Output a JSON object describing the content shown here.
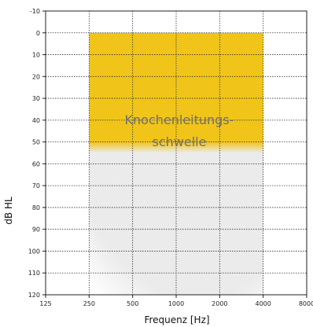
{
  "chart_data": {
    "type": "heatmap",
    "xlabel": "Frequenz [Hz]",
    "ylabel": "dB HL",
    "x_scale": "log2",
    "x_ticks": [
      125,
      250,
      500,
      1000,
      2000,
      4000,
      8000
    ],
    "x_tick_labels": [
      "125",
      "250",
      "500",
      "1000",
      "2000",
      "4000",
      "8000"
    ],
    "ylim": [
      -10,
      120
    ],
    "y_inverted": true,
    "y_ticks": [
      -10,
      0,
      10,
      20,
      30,
      40,
      50,
      60,
      70,
      80,
      90,
      100,
      110,
      120
    ],
    "y_tick_labels": [
      "-10",
      "0",
      "10",
      "20",
      "30",
      "40",
      "50",
      "60",
      "70",
      "80",
      "90",
      "100",
      "110",
      "120"
    ],
    "grid": true,
    "regions": [
      {
        "label": "Knochenleitungs-\nschwelle",
        "label_lines": [
          "Knochenleitungs-",
          "schwelle"
        ],
        "x_range": [
          250,
          4000
        ],
        "y_range": [
          0,
          50
        ],
        "fade_to": 55,
        "color": "#f0c419"
      },
      {
        "label": "",
        "x_range": [
          250,
          4000
        ],
        "y_range": [
          0,
          120
        ],
        "color": "#ebebeb"
      }
    ]
  }
}
